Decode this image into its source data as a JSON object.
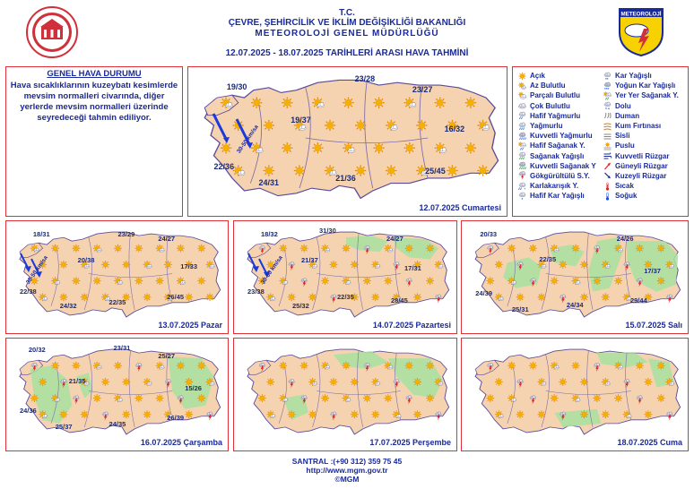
{
  "header": {
    "line1": "T.C.",
    "line2": "ÇEVRE, ŞEHİRCİLİK VE İKLİM DEĞİŞİKLİĞİ BAKANLIĞI",
    "line3": "METEOROLOJİ GENEL MÜDÜRLÜĞÜ",
    "line4": "12.07.2025  -  18.07.2025   TARİHLERİ ARASI HAVA TAHMİNİ",
    "right_logo_text": "METEOROLOJİ"
  },
  "genel": {
    "title": "GENEL HAVA DURUMU",
    "text": "Hava sıcaklıklarının kuzeybatı kesimlerde mevsim normalleri civarında, diğer yerlerde mevsim normalleri üzerinde seyredeceği tahmin ediliyor."
  },
  "maps": [
    {
      "date": "12.07.2025 Cumartesi",
      "wind": "30-50 km/sa",
      "temps": [
        "19/30",
        "23/28",
        "23/27",
        "19/37",
        "16/32",
        "22/36",
        "24/31",
        "21/36",
        "25/45"
      ]
    },
    {
      "date": "13.07.2025 Pazar",
      "wind": "30-50 km/sa",
      "temps": [
        "18/31",
        "23/29",
        "24/27",
        "20/38",
        "17/33",
        "22/38",
        "22/35",
        "26/45",
        "24/32"
      ]
    },
    {
      "date": "14.07.2025 Pazartesi",
      "wind": "30-50 km/sa",
      "temps": [
        "18/32",
        "31/30",
        "24/27",
        "21/37",
        "17/31",
        "23/38",
        "22/35",
        "28/45",
        "25/32"
      ]
    },
    {
      "date": "15.07.2025 Salı",
      "wind": "",
      "temps": [
        "20/33",
        "24/26",
        "22/35",
        "17/37",
        "24/39",
        "29/44",
        "25/31",
        "24/34"
      ]
    },
    {
      "date": "16.07.2025 Çarşamba",
      "wind": "",
      "temps": [
        "20/32",
        "23/31",
        "25/27",
        "21/35",
        "15/26",
        "24/36",
        "26/39",
        "25/37",
        "24/35"
      ]
    },
    {
      "date": "17.07.2025 Perşembe",
      "wind": "",
      "temps": []
    },
    {
      "date": "18.07.2025 Cuma",
      "wind": "",
      "temps": []
    }
  ],
  "legend": {
    "left": [
      {
        "label": "Açık",
        "icon": "sun-icon"
      },
      {
        "label": "Az Bulutlu",
        "icon": "sun-cloud-icon"
      },
      {
        "label": "Parçalı Bulutlu",
        "icon": "partly-cloudy-icon"
      },
      {
        "label": "Çok Bulutlu",
        "icon": "cloud-icon"
      },
      {
        "label": "Hafif Yağmurlu",
        "icon": "light-rain-icon"
      },
      {
        "label": "Yağmurlu",
        "icon": "rain-icon"
      },
      {
        "label": "Kuvvetli Yağmurlu",
        "icon": "heavy-rain-icon"
      },
      {
        "label": "Hafif Sağanak Y.",
        "icon": "light-shower-icon"
      },
      {
        "label": "Sağanak Yağışlı",
        "icon": "shower-icon"
      },
      {
        "label": "Kuvvetli Sağanak Y",
        "icon": "heavy-shower-icon"
      },
      {
        "label": "Gökgürültülü S.Y.",
        "icon": "thunderstorm-icon"
      },
      {
        "label": "Karlakarışık Y.",
        "icon": "sleet-icon"
      },
      {
        "label": "Hafif Kar Yağışlı",
        "icon": "light-snow-icon"
      }
    ],
    "right": [
      {
        "label": "Kar Yağışlı",
        "icon": "snow-icon"
      },
      {
        "label": "Yoğun Kar Yağışlı",
        "icon": "heavy-snow-icon"
      },
      {
        "label": "Yer Yer Sağanak Y.",
        "icon": "local-shower-icon"
      },
      {
        "label": "Dolu",
        "icon": "hail-icon"
      },
      {
        "label": "Duman",
        "icon": "smoke-icon"
      },
      {
        "label": "Kum Fırtınası",
        "icon": "sandstorm-icon"
      },
      {
        "label": "Sisli",
        "icon": "fog-icon"
      },
      {
        "label": "Puslu",
        "icon": "haze-icon"
      },
      {
        "label": "Kuvvetli Rüzgar",
        "icon": "strong-wind-icon"
      },
      {
        "label": "Güneyli Rüzgar",
        "icon": "south-wind-icon"
      },
      {
        "label": "Kuzeyli Rüzgar",
        "icon": "north-wind-icon"
      },
      {
        "label": "Sıcak",
        "icon": "hot-icon"
      },
      {
        "label": "Soğuk",
        "icon": "cold-icon"
      }
    ]
  },
  "footer": {
    "phone": "SANTRAL :(+90 312) 359 75 45",
    "url": "http://www.mgm.gov.tr",
    "copyright": "©MGM"
  },
  "colors": {
    "border": "#e0303a",
    "text": "#1a2a9a",
    "land": "#f6d3b0",
    "rain_area": "#a8e0a0",
    "sun": "#f5b000"
  }
}
